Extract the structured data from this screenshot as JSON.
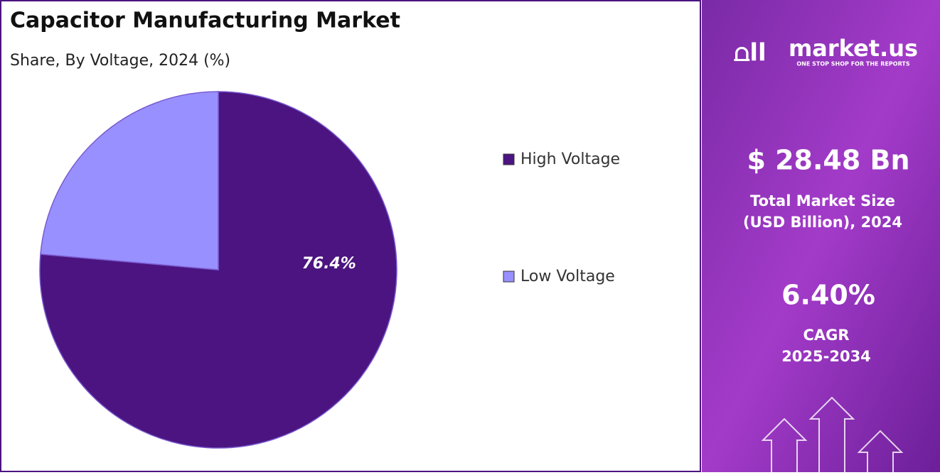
{
  "chart_data": {
    "type": "pie",
    "title": "Capacitor Manufacturing Market",
    "subtitle": "Share, By Voltage, 2024 (%)",
    "categories": [
      "High Voltage",
      "Low Voltage"
    ],
    "values": [
      76.4,
      23.6
    ],
    "value_labels": [
      "76.4%",
      null
    ],
    "colors": [
      "#4b1480",
      "#9890ff"
    ],
    "legend": "right"
  },
  "side_panel": {
    "brand": "market.us",
    "tagline": "ONE STOP SHOP FOR THE REPORTS",
    "market_size": "$ 28.48 Bn",
    "market_size_label_1": "Total Market Size",
    "market_size_label_2": "(USD Billion), 2024",
    "cagr": "6.40%",
    "cagr_label": "CAGR",
    "cagr_period": "2025-2034"
  }
}
